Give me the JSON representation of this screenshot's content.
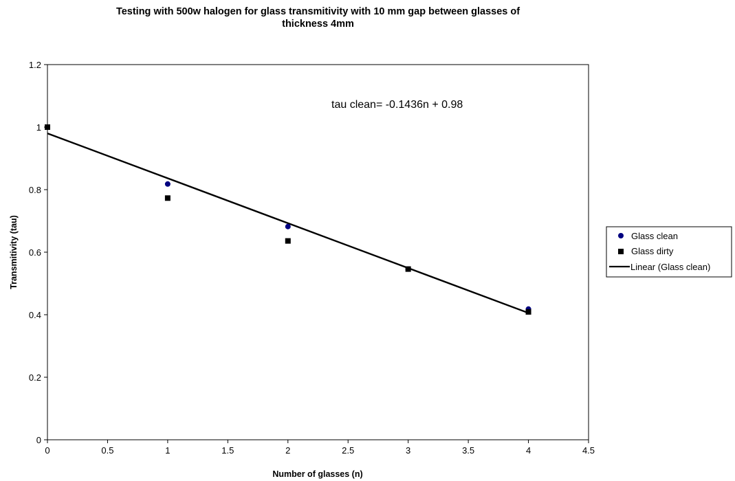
{
  "chart_data": {
    "type": "scatter",
    "title_lines": [
      "Testing with 500w halogen for glass transmitivity with 10 mm gap between glasses of",
      "thickness 4mm"
    ],
    "xlabel": "Number of glasses (n)",
    "ylabel": "Transmitivity (tau)",
    "xlim": [
      0,
      4.5
    ],
    "ylim": [
      0,
      1.2
    ],
    "xticks": [
      "0",
      "0.5",
      "1",
      "1.5",
      "2",
      "2.5",
      "3",
      "3.5",
      "4",
      "4.5"
    ],
    "yticks": [
      "0",
      "0.2",
      "0.4",
      "0.6",
      "0.8",
      "1",
      "1.2"
    ],
    "grid": false,
    "legend_position": "right",
    "series": [
      {
        "name": "Glass clean",
        "marker": "circle",
        "color": "#000080",
        "x": [
          0,
          1,
          2,
          3,
          4
        ],
        "y": [
          1.0,
          0.818,
          0.682,
          0.546,
          0.418
        ]
      },
      {
        "name": "Glass dirty",
        "marker": "square",
        "color": "#000000",
        "x": [
          0,
          1,
          2,
          3,
          4
        ],
        "y": [
          1.0,
          0.773,
          0.636,
          0.546,
          0.409
        ]
      }
    ],
    "trendline": {
      "name": "Linear (Glass clean)",
      "slope": -0.1436,
      "intercept": 0.98,
      "x_range": [
        0,
        4
      ],
      "color": "#000000"
    },
    "annotation": "tau clean= -0.1436n + 0.98"
  }
}
